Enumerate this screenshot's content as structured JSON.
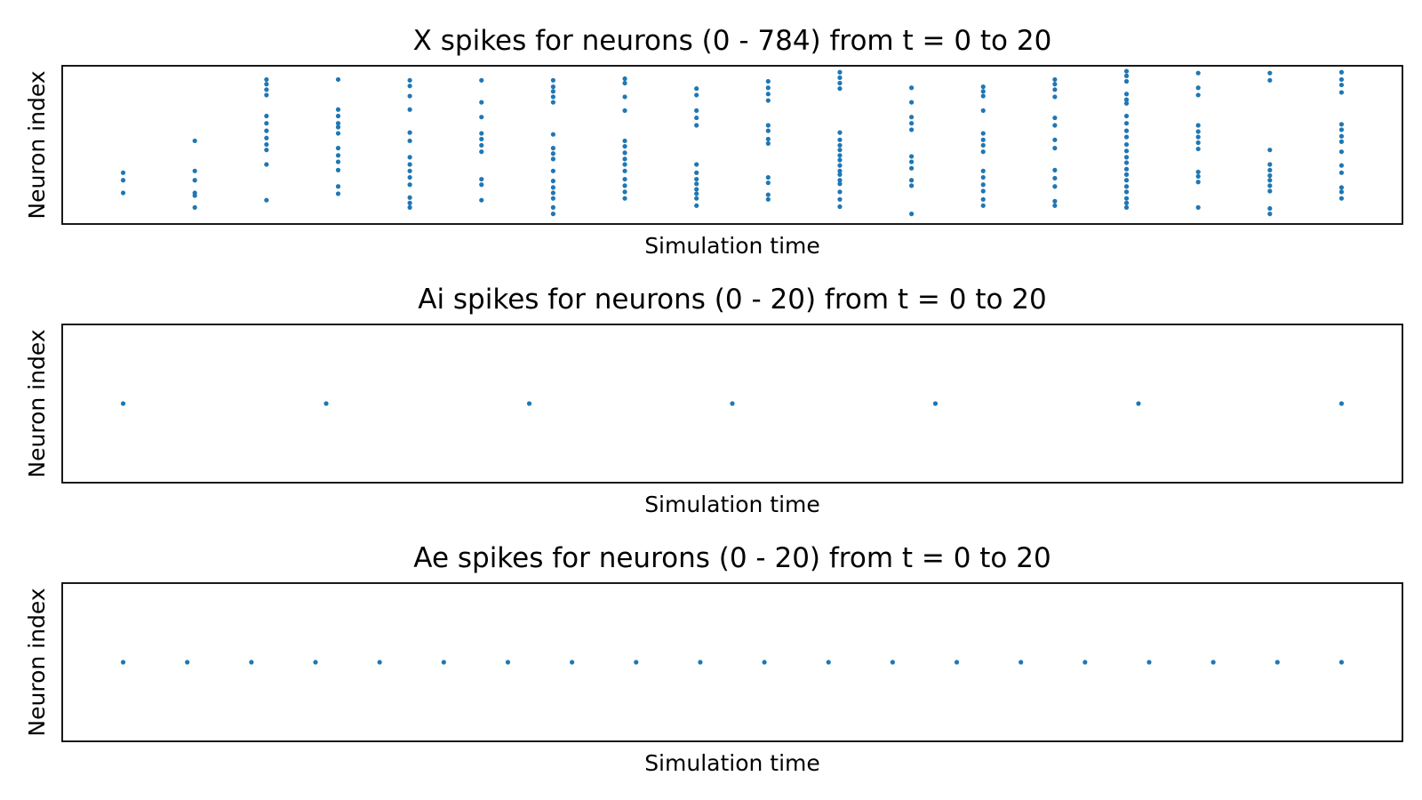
{
  "chart_data": [
    {
      "type": "scatter",
      "title": "X spikes for neurons (0 - 784) from t = 0 to 20",
      "x_label": "Simulation time",
      "y_label": "Neuron index",
      "color": "#1f77b4",
      "xlim": [
        -0.85,
        17.85
      ],
      "ylim": [
        0,
        784
      ],
      "x": [
        0,
        0,
        0,
        1,
        1,
        1,
        1,
        1,
        1,
        2,
        2,
        2,
        2,
        2,
        2,
        2,
        2,
        2,
        2,
        2,
        2,
        3,
        3,
        3,
        3,
        3,
        3,
        3,
        3,
        3,
        3,
        3,
        3,
        4,
        4,
        4,
        4,
        4,
        4,
        4,
        4,
        4,
        4,
        4,
        4,
        4,
        4,
        5,
        5,
        5,
        5,
        5,
        5,
        5,
        5,
        5,
        5,
        6,
        6,
        6,
        6,
        6,
        6,
        6,
        6,
        6,
        6,
        6,
        6,
        6,
        6,
        6,
        6,
        7,
        7,
        7,
        7,
        7,
        7,
        7,
        7,
        7,
        7,
        7,
        7,
        7,
        7,
        8,
        8,
        8,
        8,
        8,
        8,
        8,
        8,
        8,
        8,
        8,
        8,
        8,
        9,
        9,
        9,
        9,
        9,
        9,
        9,
        9,
        9,
        9,
        9,
        9,
        10,
        10,
        10,
        10,
        10,
        10,
        10,
        10,
        10,
        10,
        10,
        10,
        10,
        10,
        10,
        10,
        10,
        10,
        11,
        11,
        11,
        11,
        11,
        11,
        11,
        11,
        11,
        11,
        11,
        12,
        12,
        12,
        12,
        12,
        12,
        12,
        12,
        12,
        12,
        12,
        12,
        12,
        12,
        13,
        13,
        13,
        13,
        13,
        13,
        13,
        13,
        13,
        13,
        13,
        13,
        13,
        14,
        14,
        14,
        14,
        14,
        14,
        14,
        14,
        14,
        14,
        14,
        14,
        14,
        14,
        14,
        14,
        14,
        14,
        14,
        14,
        14,
        14,
        15,
        15,
        15,
        15,
        15,
        15,
        15,
        15,
        15,
        15,
        15,
        15,
        16,
        16,
        16,
        16,
        16,
        16,
        16,
        16,
        16,
        16,
        16,
        17,
        17,
        17,
        17,
        17,
        17,
        17,
        17,
        17,
        17,
        17,
        17,
        17,
        17
      ],
      "y": [
        254,
        217,
        154,
        412,
        263,
        217,
        154,
        141,
        82,
        716,
        693,
        666,
        639,
        535,
        499,
        462,
        426,
        394,
        367,
        295,
        118,
        716,
        567,
        535,
        499,
        480,
        449,
        376,
        340,
        308,
        267,
        186,
        150,
        712,
        684,
        634,
        567,
        453,
        412,
        331,
        295,
        263,
        231,
        195,
        131,
        104,
        82,
        712,
        603,
        530,
        449,
        421,
        390,
        358,
        222,
        195,
        118,
        712,
        680,
        657,
        630,
        603,
        444,
        376,
        349,
        322,
        263,
        213,
        181,
        154,
        127,
        82,
        50,
        720,
        698,
        630,
        562,
        412,
        385,
        353,
        322,
        295,
        263,
        222,
        190,
        159,
        127,
        671,
        639,
        562,
        526,
        489,
        295,
        254,
        222,
        199,
        172,
        150,
        127,
        91,
        707,
        675,
        644,
        612,
        489,
        462,
        421,
        399,
        231,
        204,
        145,
        122,
        752,
        725,
        698,
        671,
        453,
        417,
        390,
        367,
        340,
        317,
        290,
        263,
        245,
        217,
        199,
        159,
        122,
        86,
        675,
        603,
        530,
        499,
        467,
        335,
        308,
        276,
        217,
        190,
        50,
        680,
        657,
        634,
        562,
        449,
        417,
        390,
        358,
        263,
        231,
        195,
        163,
        122,
        91,
        716,
        693,
        666,
        630,
        526,
        489,
        417,
        376,
        267,
        227,
        186,
        113,
        91,
        757,
        734,
        707,
        644,
        616,
        598,
        535,
        499,
        462,
        431,
        394,
        362,
        331,
        304,
        272,
        245,
        217,
        186,
        159,
        127,
        104,
        82,
        748,
        675,
        639,
        489,
        458,
        431,
        403,
        372,
        258,
        236,
        208,
        82,
        748,
        712,
        367,
        295,
        267,
        240,
        217,
        190,
        163,
        77,
        50,
        752,
        716,
        689,
        652,
        494,
        467,
        435,
        408,
        358,
        290,
        254,
        181,
        159,
        127
      ]
    },
    {
      "type": "scatter",
      "title": "Ai spikes for neurons (0 - 20) from t = 0 to 20",
      "x_label": "Simulation time",
      "y_label": "Neuron index",
      "color": "#1f77b4",
      "xlim": [
        -0.9,
        18.9
      ],
      "ylim": [
        -0.055,
        0.055
      ],
      "x": [
        0,
        3,
        6,
        9,
        12,
        15,
        18
      ],
      "y": [
        0,
        0,
        0,
        0,
        0,
        0,
        0
      ]
    },
    {
      "type": "scatter",
      "title": "Ae spikes for neurons (0 - 20) from t = 0 to 20",
      "x_label": "Simulation time",
      "y_label": "Neuron index",
      "color": "#1f77b4",
      "xlim": [
        -0.95,
        19.95
      ],
      "ylim": [
        -0.055,
        0.055
      ],
      "x": [
        0,
        1,
        2,
        3,
        4,
        5,
        6,
        7,
        8,
        9,
        10,
        11,
        12,
        13,
        14,
        15,
        16,
        17,
        18,
        19
      ],
      "y": [
        0,
        0,
        0,
        0,
        0,
        0,
        0,
        0,
        0,
        0,
        0,
        0,
        0,
        0,
        0,
        0,
        0,
        0,
        0,
        0
      ]
    }
  ]
}
